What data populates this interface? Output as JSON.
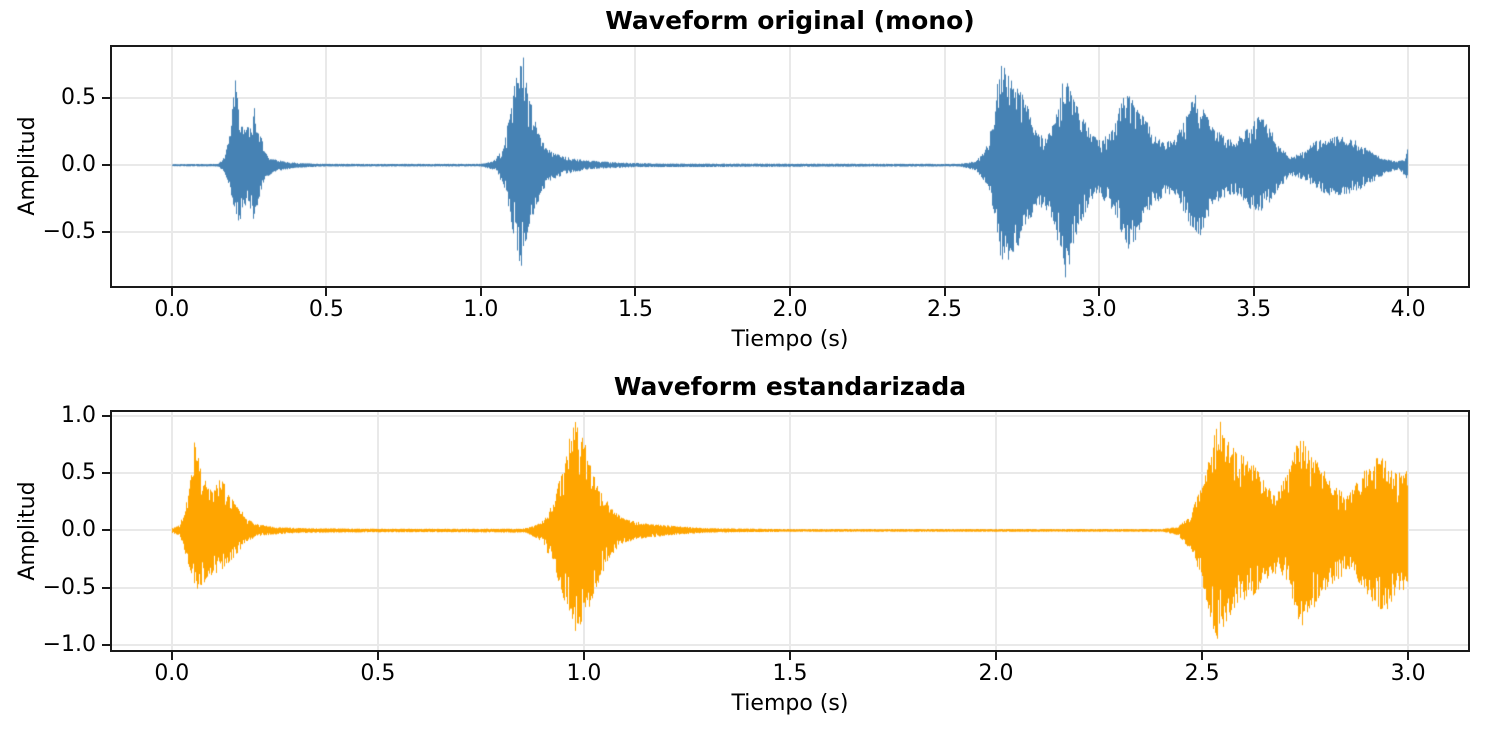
{
  "figure": {
    "background_color": "#ffffff",
    "spine_color": "#1a1a1a",
    "grid_color": "#e9e9e9",
    "text_color": "#000000"
  },
  "chart_data": [
    {
      "type": "area",
      "kind": "audio-waveform",
      "title": "Waveform original (mono)",
      "xlabel": "Tiempo (s)",
      "ylabel": "Amplitud",
      "color": "#4682B4",
      "grid": true,
      "duration_s": 4.0,
      "xlim": [
        -0.2,
        4.2
      ],
      "ylim": [
        -0.92,
        0.9
      ],
      "xtick_values": [
        0.0,
        0.5,
        1.0,
        1.5,
        2.0,
        2.5,
        3.0,
        3.5,
        4.0
      ],
      "xtick_labels": [
        "0.0",
        "0.5",
        "1.0",
        "1.5",
        "2.0",
        "2.5",
        "3.0",
        "3.5",
        "4.0"
      ],
      "ytick_values": [
        0.5,
        0.0,
        -0.5
      ],
      "ytick_labels": [
        "0.5",
        "0.0",
        "−0.5"
      ],
      "envelope_pos": [
        [
          0,
          0.008
        ],
        [
          0.15,
          0.01
        ],
        [
          0.17,
          0.06
        ],
        [
          0.19,
          0.25
        ],
        [
          0.205,
          0.67
        ],
        [
          0.215,
          0.45
        ],
        [
          0.225,
          0.3
        ],
        [
          0.24,
          0.28
        ],
        [
          0.26,
          0.3
        ],
        [
          0.268,
          0.45
        ],
        [
          0.275,
          0.3
        ],
        [
          0.29,
          0.22
        ],
        [
          0.3,
          0.1
        ],
        [
          0.32,
          0.05
        ],
        [
          0.36,
          0.03
        ],
        [
          0.42,
          0.015
        ],
        [
          0.5,
          0.01
        ],
        [
          1.0,
          0.01
        ],
        [
          1.04,
          0.03
        ],
        [
          1.07,
          0.12
        ],
        [
          1.09,
          0.35
        ],
        [
          1.11,
          0.65
        ],
        [
          1.125,
          0.84
        ],
        [
          1.14,
          0.8
        ],
        [
          1.16,
          0.5
        ],
        [
          1.18,
          0.3
        ],
        [
          1.2,
          0.18
        ],
        [
          1.23,
          0.1
        ],
        [
          1.28,
          0.06
        ],
        [
          1.35,
          0.035
        ],
        [
          1.45,
          0.02
        ],
        [
          1.6,
          0.012
        ],
        [
          2.55,
          0.01
        ],
        [
          2.6,
          0.03
        ],
        [
          2.63,
          0.1
        ],
        [
          2.66,
          0.35
        ],
        [
          2.68,
          0.81
        ],
        [
          2.7,
          0.7
        ],
        [
          2.72,
          0.62
        ],
        [
          2.75,
          0.55
        ],
        [
          2.78,
          0.38
        ],
        [
          2.8,
          0.25
        ],
        [
          2.83,
          0.2
        ],
        [
          2.86,
          0.35
        ],
        [
          2.885,
          0.69
        ],
        [
          2.9,
          0.6
        ],
        [
          2.92,
          0.48
        ],
        [
          2.95,
          0.35
        ],
        [
          2.98,
          0.22
        ],
        [
          3.01,
          0.18
        ],
        [
          3.04,
          0.28
        ],
        [
          3.07,
          0.45
        ],
        [
          3.09,
          0.57
        ],
        [
          3.11,
          0.5
        ],
        [
          3.14,
          0.38
        ],
        [
          3.17,
          0.28
        ],
        [
          3.2,
          0.2
        ],
        [
          3.24,
          0.18
        ],
        [
          3.28,
          0.35
        ],
        [
          3.31,
          0.54
        ],
        [
          3.33,
          0.45
        ],
        [
          3.36,
          0.32
        ],
        [
          3.4,
          0.22
        ],
        [
          3.44,
          0.18
        ],
        [
          3.48,
          0.28
        ],
        [
          3.52,
          0.37
        ],
        [
          3.55,
          0.3
        ],
        [
          3.58,
          0.15
        ],
        [
          3.62,
          0.06
        ],
        [
          3.66,
          0.1
        ],
        [
          3.7,
          0.18
        ],
        [
          3.74,
          0.2
        ],
        [
          3.78,
          0.22
        ],
        [
          3.8,
          0.2
        ],
        [
          3.84,
          0.18
        ],
        [
          3.88,
          0.1
        ],
        [
          3.92,
          0.05
        ],
        [
          3.96,
          0.03
        ],
        [
          3.99,
          0.04
        ],
        [
          4.0,
          0.14
        ]
      ],
      "envelope_neg": [
        [
          0,
          0.008
        ],
        [
          0.15,
          0.01
        ],
        [
          0.17,
          0.05
        ],
        [
          0.19,
          0.2
        ],
        [
          0.205,
          0.35
        ],
        [
          0.215,
          0.45
        ],
        [
          0.23,
          0.4
        ],
        [
          0.25,
          0.3
        ],
        [
          0.265,
          0.42
        ],
        [
          0.28,
          0.3
        ],
        [
          0.3,
          0.12
        ],
        [
          0.33,
          0.05
        ],
        [
          0.4,
          0.02
        ],
        [
          0.5,
          0.01
        ],
        [
          1.0,
          0.01
        ],
        [
          1.05,
          0.04
        ],
        [
          1.08,
          0.2
        ],
        [
          1.1,
          0.45
        ],
        [
          1.125,
          0.8
        ],
        [
          1.14,
          0.7
        ],
        [
          1.16,
          0.45
        ],
        [
          1.19,
          0.25
        ],
        [
          1.22,
          0.12
        ],
        [
          1.27,
          0.07
        ],
        [
          1.35,
          0.03
        ],
        [
          1.5,
          0.015
        ],
        [
          2.55,
          0.01
        ],
        [
          2.6,
          0.04
        ],
        [
          2.64,
          0.15
        ],
        [
          2.67,
          0.5
        ],
        [
          2.69,
          0.82
        ],
        [
          2.71,
          0.7
        ],
        [
          2.74,
          0.6
        ],
        [
          2.77,
          0.45
        ],
        [
          2.8,
          0.3
        ],
        [
          2.84,
          0.35
        ],
        [
          2.87,
          0.6
        ],
        [
          2.89,
          0.85
        ],
        [
          2.91,
          0.7
        ],
        [
          2.94,
          0.45
        ],
        [
          2.97,
          0.28
        ],
        [
          3.0,
          0.22
        ],
        [
          3.04,
          0.35
        ],
        [
          3.07,
          0.5
        ],
        [
          3.1,
          0.65
        ],
        [
          3.13,
          0.5
        ],
        [
          3.16,
          0.35
        ],
        [
          3.2,
          0.25
        ],
        [
          3.25,
          0.22
        ],
        [
          3.29,
          0.45
        ],
        [
          3.32,
          0.57
        ],
        [
          3.35,
          0.4
        ],
        [
          3.38,
          0.28
        ],
        [
          3.42,
          0.22
        ],
        [
          3.46,
          0.25
        ],
        [
          3.5,
          0.37
        ],
        [
          3.54,
          0.33
        ],
        [
          3.58,
          0.18
        ],
        [
          3.62,
          0.08
        ],
        [
          3.67,
          0.12
        ],
        [
          3.72,
          0.2
        ],
        [
          3.76,
          0.24
        ],
        [
          3.8,
          0.22
        ],
        [
          3.85,
          0.18
        ],
        [
          3.89,
          0.12
        ],
        [
          3.93,
          0.06
        ],
        [
          3.97,
          0.03
        ],
        [
          4.0,
          0.12
        ]
      ]
    },
    {
      "type": "area",
      "kind": "audio-waveform",
      "title": "Waveform estandarizada",
      "xlabel": "Tiempo (s)",
      "ylabel": "Amplitud",
      "color": "#FFA500",
      "grid": true,
      "duration_s": 3.0,
      "xlim": [
        -0.15,
        3.15
      ],
      "ylim": [
        -1.06,
        1.05
      ],
      "xtick_values": [
        0.0,
        0.5,
        1.0,
        1.5,
        2.0,
        2.5,
        3.0
      ],
      "xtick_labels": [
        "0.0",
        "0.5",
        "1.0",
        "1.5",
        "2.0",
        "2.5",
        "3.0"
      ],
      "ytick_values": [
        1.0,
        0.5,
        0.0,
        -0.5,
        -1.0
      ],
      "ytick_labels": [
        "1.0",
        "0.5",
        "0.0",
        "−0.5",
        "−1.0"
      ],
      "envelope_pos": [
        [
          0,
          0.02
        ],
        [
          0.02,
          0.05
        ],
        [
          0.04,
          0.3
        ],
        [
          0.055,
          0.78
        ],
        [
          0.07,
          0.55
        ],
        [
          0.085,
          0.4
        ],
        [
          0.1,
          0.35
        ],
        [
          0.115,
          0.45
        ],
        [
          0.125,
          0.43
        ],
        [
          0.14,
          0.3
        ],
        [
          0.16,
          0.22
        ],
        [
          0.18,
          0.12
        ],
        [
          0.2,
          0.06
        ],
        [
          0.25,
          0.03
        ],
        [
          0.32,
          0.02
        ],
        [
          0.5,
          0.015
        ],
        [
          0.85,
          0.015
        ],
        [
          0.88,
          0.04
        ],
        [
          0.91,
          0.12
        ],
        [
          0.94,
          0.45
        ],
        [
          0.965,
          0.8
        ],
        [
          0.98,
          0.95
        ],
        [
          1.0,
          0.8
        ],
        [
          1.02,
          0.55
        ],
        [
          1.04,
          0.35
        ],
        [
          1.07,
          0.18
        ],
        [
          1.1,
          0.1
        ],
        [
          1.15,
          0.06
        ],
        [
          1.22,
          0.04
        ],
        [
          1.3,
          0.02
        ],
        [
          1.5,
          0.012
        ],
        [
          2.4,
          0.012
        ],
        [
          2.44,
          0.03
        ],
        [
          2.47,
          0.12
        ],
        [
          2.5,
          0.4
        ],
        [
          2.53,
          0.85
        ],
        [
          2.545,
          0.96
        ],
        [
          2.56,
          0.8
        ],
        [
          2.58,
          0.7
        ],
        [
          2.6,
          0.65
        ],
        [
          2.63,
          0.55
        ],
        [
          2.66,
          0.4
        ],
        [
          2.68,
          0.3
        ],
        [
          2.7,
          0.45
        ],
        [
          2.73,
          0.75
        ],
        [
          2.745,
          0.81
        ],
        [
          2.76,
          0.7
        ],
        [
          2.79,
          0.55
        ],
        [
          2.82,
          0.4
        ],
        [
          2.85,
          0.3
        ],
        [
          2.88,
          0.45
        ],
        [
          2.91,
          0.6
        ],
        [
          2.935,
          0.67
        ],
        [
          2.96,
          0.55
        ],
        [
          2.98,
          0.5
        ],
        [
          3.0,
          0.52
        ]
      ],
      "envelope_neg": [
        [
          0,
          0.02
        ],
        [
          0.02,
          0.05
        ],
        [
          0.045,
          0.35
        ],
        [
          0.06,
          0.55
        ],
        [
          0.08,
          0.45
        ],
        [
          0.1,
          0.38
        ],
        [
          0.12,
          0.37
        ],
        [
          0.14,
          0.28
        ],
        [
          0.16,
          0.2
        ],
        [
          0.18,
          0.1
        ],
        [
          0.21,
          0.05
        ],
        [
          0.27,
          0.03
        ],
        [
          0.35,
          0.02
        ],
        [
          0.6,
          0.015
        ],
        [
          0.86,
          0.02
        ],
        [
          0.9,
          0.1
        ],
        [
          0.93,
          0.35
        ],
        [
          0.96,
          0.7
        ],
        [
          0.98,
          0.88
        ],
        [
          1.005,
          0.75
        ],
        [
          1.03,
          0.5
        ],
        [
          1.06,
          0.25
        ],
        [
          1.09,
          0.12
        ],
        [
          1.14,
          0.07
        ],
        [
          1.22,
          0.04
        ],
        [
          1.3,
          0.02
        ],
        [
          1.5,
          0.012
        ],
        [
          2.4,
          0.012
        ],
        [
          2.44,
          0.04
        ],
        [
          2.48,
          0.2
        ],
        [
          2.51,
          0.6
        ],
        [
          2.535,
          0.97
        ],
        [
          2.55,
          0.85
        ],
        [
          2.57,
          0.75
        ],
        [
          2.6,
          0.65
        ],
        [
          2.63,
          0.55
        ],
        [
          2.66,
          0.42
        ],
        [
          2.69,
          0.35
        ],
        [
          2.72,
          0.6
        ],
        [
          2.74,
          0.85
        ],
        [
          2.76,
          0.72
        ],
        [
          2.79,
          0.6
        ],
        [
          2.82,
          0.45
        ],
        [
          2.86,
          0.35
        ],
        [
          2.89,
          0.5
        ],
        [
          2.92,
          0.65
        ],
        [
          2.945,
          0.72
        ],
        [
          2.97,
          0.55
        ],
        [
          3.0,
          0.5
        ]
      ]
    }
  ]
}
